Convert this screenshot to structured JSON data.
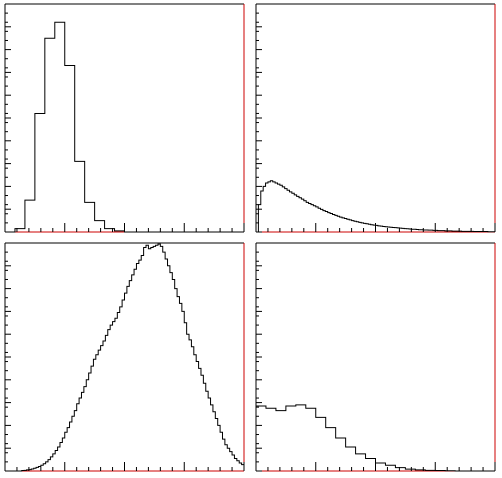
{
  "chart_data": [
    {
      "type": "histogram",
      "title": "",
      "xlabel": "",
      "ylabel": "",
      "grid": false,
      "xlim": [
        0,
        24
      ],
      "ylim": [
        0,
        100
      ],
      "bins": 24,
      "values": [
        0,
        1.5,
        14,
        52,
        85,
        92,
        73,
        31,
        13,
        5,
        1.5,
        0.5,
        0,
        0,
        0,
        0,
        0,
        0,
        0,
        0,
        0,
        0,
        0,
        0
      ]
    },
    {
      "type": "histogram",
      "title": "",
      "xlabel": "",
      "ylabel": "",
      "grid": false,
      "xlim": [
        0,
        100
      ],
      "ylim": [
        0,
        100
      ],
      "bins": 100,
      "values": [
        0,
        12,
        18,
        20,
        21.5,
        22,
        22.5,
        22,
        21.5,
        21,
        20.5,
        19.8,
        19,
        18.3,
        17.6,
        17,
        16.3,
        15.6,
        15,
        14.4,
        13.7,
        13,
        12.5,
        12,
        11.5,
        11,
        10.4,
        9.9,
        9.4,
        9,
        8.5,
        8.1,
        7.7,
        7.3,
        6.9,
        6.5,
        6.2,
        5.9,
        5.6,
        5.3,
        5,
        4.7,
        4.5,
        4.2,
        4,
        3.8,
        3.6,
        3.4,
        3.2,
        3,
        2.9,
        2.7,
        2.6,
        2.4,
        2.3,
        2.2,
        2.1,
        2,
        1.9,
        1.8,
        1.7,
        1.6,
        1.5,
        1.4,
        1.3,
        1.2,
        1.2,
        1.1,
        1,
        1,
        0.9,
        0.9,
        0.8,
        0.8,
        0.7,
        0.7,
        0.6,
        0.6,
        0.6,
        0.5,
        0.5,
        0.5,
        0.4,
        0.4,
        0.4,
        0.4,
        0.3,
        0.3,
        0.3,
        0.3,
        0.3,
        0.2,
        0.2,
        0.2,
        0.2,
        0.2,
        0.2,
        0.1,
        0.1,
        0.1
      ]
    },
    {
      "type": "histogram",
      "title": "",
      "xlabel": "",
      "ylabel": "",
      "grid": false,
      "xlim": [
        0,
        100
      ],
      "ylim": [
        0,
        100
      ],
      "bins": 100,
      "values": [
        0,
        0,
        0,
        0,
        0,
        0,
        0,
        0.2,
        0.3,
        0.5,
        0.6,
        0.9,
        1.2,
        1.6,
        2,
        2.5,
        3.2,
        4,
        5,
        6.2,
        7.5,
        9,
        10.5,
        12.5,
        14.5,
        17,
        19,
        21.5,
        24,
        26.5,
        29.5,
        32,
        34.5,
        37,
        40,
        43,
        46,
        49,
        51,
        53,
        55,
        57,
        59.5,
        62,
        64,
        65.5,
        67,
        69.5,
        72,
        75,
        78,
        81,
        83.5,
        86,
        88.5,
        91,
        92.5,
        94.5,
        98,
        99,
        97.5,
        98,
        98.5,
        99,
        99.5,
        98.5,
        96,
        93,
        90,
        87,
        84,
        80,
        76.5,
        73.5,
        70,
        65,
        60,
        57.5,
        54.5,
        51,
        48,
        45,
        42,
        38.5,
        35,
        32,
        29,
        26,
        23,
        20,
        17,
        14,
        11.5,
        10,
        8.5,
        7,
        5.5,
        4.5,
        3.5,
        2.8
      ]
    },
    {
      "type": "histogram",
      "title": "",
      "xlabel": "",
      "ylabel": "",
      "grid": false,
      "xlim": [
        0,
        24
      ],
      "ylim": [
        0,
        100
      ],
      "bins": 24,
      "values": [
        28.5,
        27.5,
        26.5,
        28.5,
        29,
        27.5,
        23.5,
        19,
        14.5,
        10.5,
        7.5,
        5.5,
        3.5,
        2.5,
        1.5,
        0.8,
        0.5,
        0.3,
        0.2,
        0.1,
        0,
        0,
        0,
        0
      ]
    }
  ]
}
